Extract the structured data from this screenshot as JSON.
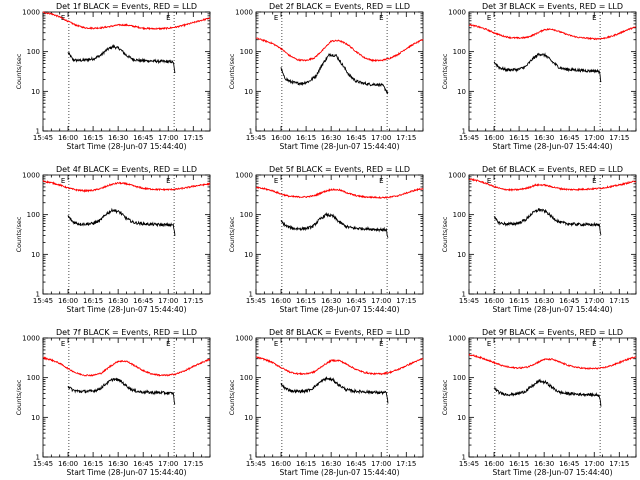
{
  "chart_data": [
    {
      "type": "line",
      "title": "Det 1f BLACK = Events, RED = LLD",
      "ylabel": "Counts/sec",
      "xlabel": "Start Time (28-Jun-07 15:44:40)",
      "x_ticks": [
        "15:45",
        "16:00",
        "16:15",
        "16:30",
        "16:45",
        "17:00",
        "17:15"
      ],
      "y_ticks": [
        "1",
        "10",
        "100",
        "1000"
      ],
      "y_scale": "log",
      "ylim": [
        1,
        1000
      ],
      "xlim_minutes": [
        0,
        100
      ],
      "vlines_minutes": [
        15.5,
        78.5
      ],
      "vline_labels": [
        "E",
        "E"
      ],
      "series": [
        {
          "color": "#000000",
          "x": [
            15,
            18,
            22,
            26,
            30,
            34,
            38,
            42,
            46,
            50,
            54,
            58,
            62,
            66,
            70,
            74,
            78,
            79
          ],
          "y": [
            95,
            62,
            60,
            62,
            66,
            78,
            110,
            135,
            118,
            80,
            64,
            60,
            59,
            58,
            57,
            56,
            55,
            28
          ]
        },
        {
          "color": "#ff0000",
          "x": [
            0,
            5,
            10,
            15,
            20,
            25,
            30,
            35,
            40,
            45,
            50,
            55,
            60,
            65,
            70,
            75,
            80,
            85,
            90,
            95,
            100
          ],
          "y": [
            980,
            900,
            750,
            580,
            460,
            400,
            390,
            400,
            430,
            470,
            470,
            430,
            390,
            380,
            380,
            390,
            420,
            470,
            540,
            620,
            700
          ]
        }
      ]
    },
    {
      "type": "line",
      "title": "Det 2f BLACK = Events, RED = LLD",
      "ylabel": "Counts/sec",
      "xlabel": "Start Time (28-Jun-07 15:44:40)",
      "x_ticks": [
        "15:45",
        "16:00",
        "16:15",
        "16:30",
        "16:45",
        "17:00",
        "17:15"
      ],
      "y_ticks": [
        "1",
        "10",
        "100",
        "1000"
      ],
      "y_scale": "log",
      "ylim": [
        1,
        1000
      ],
      "xlim_minutes": [
        0,
        100
      ],
      "vlines_minutes": [
        15.5,
        78.5
      ],
      "vline_labels": [
        "E",
        "E"
      ],
      "series": [
        {
          "color": "#000000",
          "x": [
            15,
            17,
            20,
            24,
            28,
            32,
            36,
            40,
            44,
            48,
            52,
            56,
            60,
            64,
            68,
            72,
            76,
            79
          ],
          "y": [
            38,
            22,
            18,
            16,
            16,
            18,
            25,
            50,
            85,
            80,
            45,
            25,
            18,
            16,
            15,
            15,
            14,
            9
          ]
        },
        {
          "color": "#ff0000",
          "x": [
            0,
            5,
            10,
            15,
            20,
            25,
            30,
            35,
            40,
            45,
            50,
            55,
            60,
            65,
            70,
            75,
            80,
            85,
            90,
            95,
            100
          ],
          "y": [
            220,
            190,
            160,
            120,
            80,
            62,
            60,
            70,
            110,
            185,
            190,
            150,
            100,
            70,
            60,
            60,
            68,
            85,
            120,
            160,
            200
          ]
        }
      ]
    },
    {
      "type": "line",
      "title": "Det 3f BLACK = Events, RED = LLD",
      "ylabel": "Counts/sec",
      "xlabel": "Start Time (28-Jun-07 15:44:40)",
      "x_ticks": [
        "15:45",
        "16:00",
        "16:15",
        "16:30",
        "16:45",
        "17:00",
        "17:15"
      ],
      "y_ticks": [
        "1",
        "10",
        "100",
        "1000"
      ],
      "y_scale": "log",
      "ylim": [
        1,
        1000
      ],
      "xlim_minutes": [
        0,
        100
      ],
      "vlines_minutes": [
        15.5,
        78.5
      ],
      "vline_labels": [
        "E",
        "E"
      ],
      "series": [
        {
          "color": "#000000",
          "x": [
            15,
            18,
            22,
            26,
            30,
            34,
            38,
            42,
            46,
            50,
            54,
            58,
            62,
            66,
            70,
            74,
            78,
            79
          ],
          "y": [
            55,
            40,
            35,
            35,
            36,
            42,
            65,
            88,
            80,
            55,
            40,
            36,
            35,
            34,
            33,
            33,
            32,
            18
          ]
        },
        {
          "color": "#ff0000",
          "x": [
            0,
            5,
            10,
            15,
            20,
            25,
            30,
            35,
            40,
            45,
            50,
            55,
            60,
            65,
            70,
            75,
            80,
            85,
            90,
            95,
            100
          ],
          "y": [
            480,
            430,
            370,
            300,
            250,
            225,
            220,
            230,
            280,
            360,
            370,
            310,
            260,
            230,
            220,
            210,
            215,
            240,
            290,
            360,
            420
          ]
        }
      ]
    },
    {
      "type": "line",
      "title": "Det 4f BLACK = Events, RED = LLD",
      "ylabel": "Counts/sec",
      "xlabel": "Start Time (28-Jun-07 15:44:40)",
      "x_ticks": [
        "15:45",
        "16:00",
        "16:15",
        "16:30",
        "16:45",
        "17:00",
        "17:15"
      ],
      "y_ticks": [
        "1",
        "10",
        "100",
        "1000"
      ],
      "y_scale": "log",
      "ylim": [
        1,
        1000
      ],
      "xlim_minutes": [
        0,
        100
      ],
      "vlines_minutes": [
        15.5,
        78.5
      ],
      "vline_labels": [
        "E",
        "E"
      ],
      "series": [
        {
          "color": "#000000",
          "x": [
            15,
            18,
            22,
            26,
            30,
            34,
            38,
            42,
            46,
            50,
            54,
            58,
            62,
            66,
            70,
            74,
            78,
            79
          ],
          "y": [
            92,
            65,
            58,
            58,
            60,
            70,
            105,
            132,
            115,
            80,
            64,
            60,
            58,
            57,
            56,
            55,
            55,
            30
          ]
        },
        {
          "color": "#ff0000",
          "x": [
            0,
            5,
            10,
            15,
            20,
            25,
            30,
            35,
            40,
            45,
            50,
            55,
            60,
            65,
            70,
            75,
            80,
            85,
            90,
            95,
            100
          ],
          "y": [
            700,
            640,
            560,
            470,
            420,
            400,
            410,
            460,
            560,
            630,
            600,
            520,
            460,
            440,
            430,
            430,
            440,
            470,
            520,
            560,
            600
          ]
        }
      ]
    },
    {
      "type": "line",
      "title": "Det 5f BLACK = Events, RED = LLD",
      "ylabel": "Counts/sec",
      "xlabel": "Start Time (28-Jun-07 15:44:40)",
      "x_ticks": [
        "15:45",
        "16:00",
        "16:15",
        "16:30",
        "16:45",
        "17:00",
        "17:15"
      ],
      "y_ticks": [
        "1",
        "10",
        "100",
        "1000"
      ],
      "y_scale": "log",
      "ylim": [
        1,
        1000
      ],
      "xlim_minutes": [
        0,
        100
      ],
      "vlines_minutes": [
        15.5,
        78.5
      ],
      "vline_labels": [
        "E",
        "E"
      ],
      "series": [
        {
          "color": "#000000",
          "x": [
            15,
            18,
            22,
            26,
            30,
            34,
            38,
            42,
            46,
            50,
            54,
            58,
            62,
            66,
            70,
            74,
            78,
            79
          ],
          "y": [
            68,
            52,
            45,
            44,
            45,
            50,
            75,
            100,
            92,
            65,
            50,
            46,
            45,
            44,
            43,
            42,
            42,
            25
          ]
        },
        {
          "color": "#ff0000",
          "x": [
            0,
            5,
            10,
            15,
            20,
            25,
            30,
            35,
            40,
            45,
            50,
            55,
            60,
            65,
            70,
            75,
            80,
            85,
            90,
            95,
            100
          ],
          "y": [
            480,
            450,
            400,
            330,
            290,
            280,
            280,
            300,
            370,
            430,
            420,
            350,
            300,
            280,
            275,
            270,
            275,
            300,
            350,
            410,
            460
          ]
        }
      ]
    },
    {
      "type": "line",
      "title": "Det 6f BLACK = Events, RED = LLD",
      "ylabel": "Counts/sec",
      "xlabel": "Start Time (28-Jun-07 15:44:40)",
      "x_ticks": [
        "15:45",
        "16:00",
        "16:15",
        "16:30",
        "16:45",
        "17:00",
        "17:15"
      ],
      "y_ticks": [
        "1",
        "10",
        "100",
        "1000"
      ],
      "y_scale": "log",
      "ylim": [
        1,
        1000
      ],
      "xlim_minutes": [
        0,
        100
      ],
      "vlines_minutes": [
        15.5,
        78.5
      ],
      "vline_labels": [
        "E",
        "E"
      ],
      "series": [
        {
          "color": "#000000",
          "x": [
            15,
            18,
            22,
            26,
            30,
            34,
            38,
            42,
            46,
            50,
            54,
            58,
            62,
            66,
            70,
            74,
            78,
            79
          ],
          "y": [
            85,
            62,
            58,
            58,
            62,
            75,
            110,
            135,
            120,
            85,
            65,
            60,
            58,
            57,
            56,
            56,
            55,
            30
          ]
        },
        {
          "color": "#ff0000",
          "x": [
            0,
            5,
            10,
            15,
            20,
            25,
            30,
            35,
            40,
            45,
            50,
            55,
            60,
            65,
            70,
            75,
            80,
            85,
            90,
            95,
            100
          ],
          "y": [
            800,
            720,
            620,
            510,
            440,
            420,
            430,
            470,
            560,
            560,
            500,
            450,
            430,
            430,
            440,
            450,
            470,
            510,
            560,
            630,
            700
          ]
        }
      ]
    },
    {
      "type": "line",
      "title": "Det 7f BLACK = Events, RED = LLD",
      "ylabel": "Counts/sec",
      "xlabel": "Start Time (28-Jun-07 15:44:40)",
      "x_ticks": [
        "15:45",
        "16:00",
        "16:15",
        "16:30",
        "16:45",
        "17:00",
        "17:15"
      ],
      "y_ticks": [
        "1",
        "10",
        "100",
        "1000"
      ],
      "y_scale": "log",
      "ylim": [
        1,
        1000
      ],
      "xlim_minutes": [
        0,
        100
      ],
      "vlines_minutes": [
        15.5,
        78.5
      ],
      "vline_labels": [
        "E",
        "E"
      ],
      "series": [
        {
          "color": "#000000",
          "x": [
            15,
            18,
            22,
            26,
            30,
            34,
            38,
            42,
            46,
            50,
            54,
            58,
            62,
            66,
            70,
            74,
            78,
            79
          ],
          "y": [
            60,
            48,
            45,
            45,
            46,
            52,
            72,
            92,
            85,
            62,
            48,
            44,
            43,
            42,
            42,
            41,
            40,
            20
          ]
        },
        {
          "color": "#ff0000",
          "x": [
            0,
            5,
            10,
            15,
            20,
            25,
            30,
            35,
            40,
            45,
            50,
            55,
            60,
            65,
            70,
            75,
            80,
            85,
            90,
            95,
            100
          ],
          "y": [
            320,
            280,
            230,
            170,
            130,
            115,
            115,
            130,
            190,
            260,
            260,
            200,
            150,
            125,
            115,
            115,
            125,
            150,
            190,
            240,
            290
          ]
        }
      ]
    },
    {
      "type": "line",
      "title": "Det 8f BLACK = Events, RED = LLD",
      "ylabel": "Counts/sec",
      "xlabel": "Start Time (28-Jun-07 15:44:40)",
      "x_ticks": [
        "15:45",
        "16:00",
        "16:15",
        "16:30",
        "16:45",
        "17:00",
        "17:15"
      ],
      "y_ticks": [
        "1",
        "10",
        "100",
        "1000"
      ],
      "y_scale": "log",
      "ylim": [
        1,
        1000
      ],
      "xlim_minutes": [
        0,
        100
      ],
      "vlines_minutes": [
        15.5,
        78.5
      ],
      "vline_labels": [
        "E",
        "E"
      ],
      "series": [
        {
          "color": "#000000",
          "x": [
            15,
            18,
            22,
            26,
            30,
            34,
            38,
            42,
            46,
            50,
            54,
            58,
            62,
            66,
            70,
            74,
            78,
            79
          ],
          "y": [
            68,
            52,
            46,
            45,
            46,
            54,
            75,
            95,
            88,
            64,
            50,
            46,
            45,
            44,
            43,
            42,
            42,
            24
          ]
        },
        {
          "color": "#ff0000",
          "x": [
            0,
            5,
            10,
            15,
            20,
            25,
            30,
            35,
            40,
            45,
            50,
            55,
            60,
            65,
            70,
            75,
            80,
            85,
            90,
            95,
            100
          ],
          "y": [
            330,
            290,
            240,
            180,
            140,
            125,
            125,
            140,
            200,
            270,
            270,
            210,
            160,
            135,
            125,
            125,
            135,
            160,
            200,
            250,
            300
          ]
        }
      ]
    },
    {
      "type": "line",
      "title": "Det 9f BLACK = Events, RED = LLD",
      "ylabel": "Counts/sec",
      "xlabel": "Start Time (28-Jun-07 15:44:40)",
      "x_ticks": [
        "15:45",
        "16:00",
        "16:15",
        "16:30",
        "16:45",
        "17:00",
        "17:15"
      ],
      "y_ticks": [
        "1",
        "10",
        "100",
        "1000"
      ],
      "y_scale": "log",
      "ylim": [
        1,
        1000
      ],
      "xlim_minutes": [
        0,
        100
      ],
      "vlines_minutes": [
        15.5,
        78.5
      ],
      "vline_labels": [
        "E",
        "E"
      ],
      "series": [
        {
          "color": "#000000",
          "x": [
            15,
            18,
            22,
            26,
            30,
            34,
            38,
            42,
            46,
            50,
            54,
            58,
            62,
            66,
            70,
            74,
            78,
            79
          ],
          "y": [
            55,
            42,
            38,
            38,
            40,
            46,
            62,
            82,
            76,
            56,
            43,
            40,
            39,
            38,
            38,
            37,
            36,
            20
          ]
        },
        {
          "color": "#ff0000",
          "x": [
            0,
            5,
            10,
            15,
            20,
            25,
            30,
            35,
            40,
            45,
            50,
            55,
            60,
            65,
            70,
            75,
            80,
            85,
            90,
            95,
            100
          ],
          "y": [
            380,
            340,
            290,
            240,
            200,
            180,
            175,
            185,
            230,
            290,
            290,
            240,
            200,
            180,
            170,
            170,
            175,
            200,
            240,
            290,
            340
          ]
        }
      ]
    }
  ]
}
